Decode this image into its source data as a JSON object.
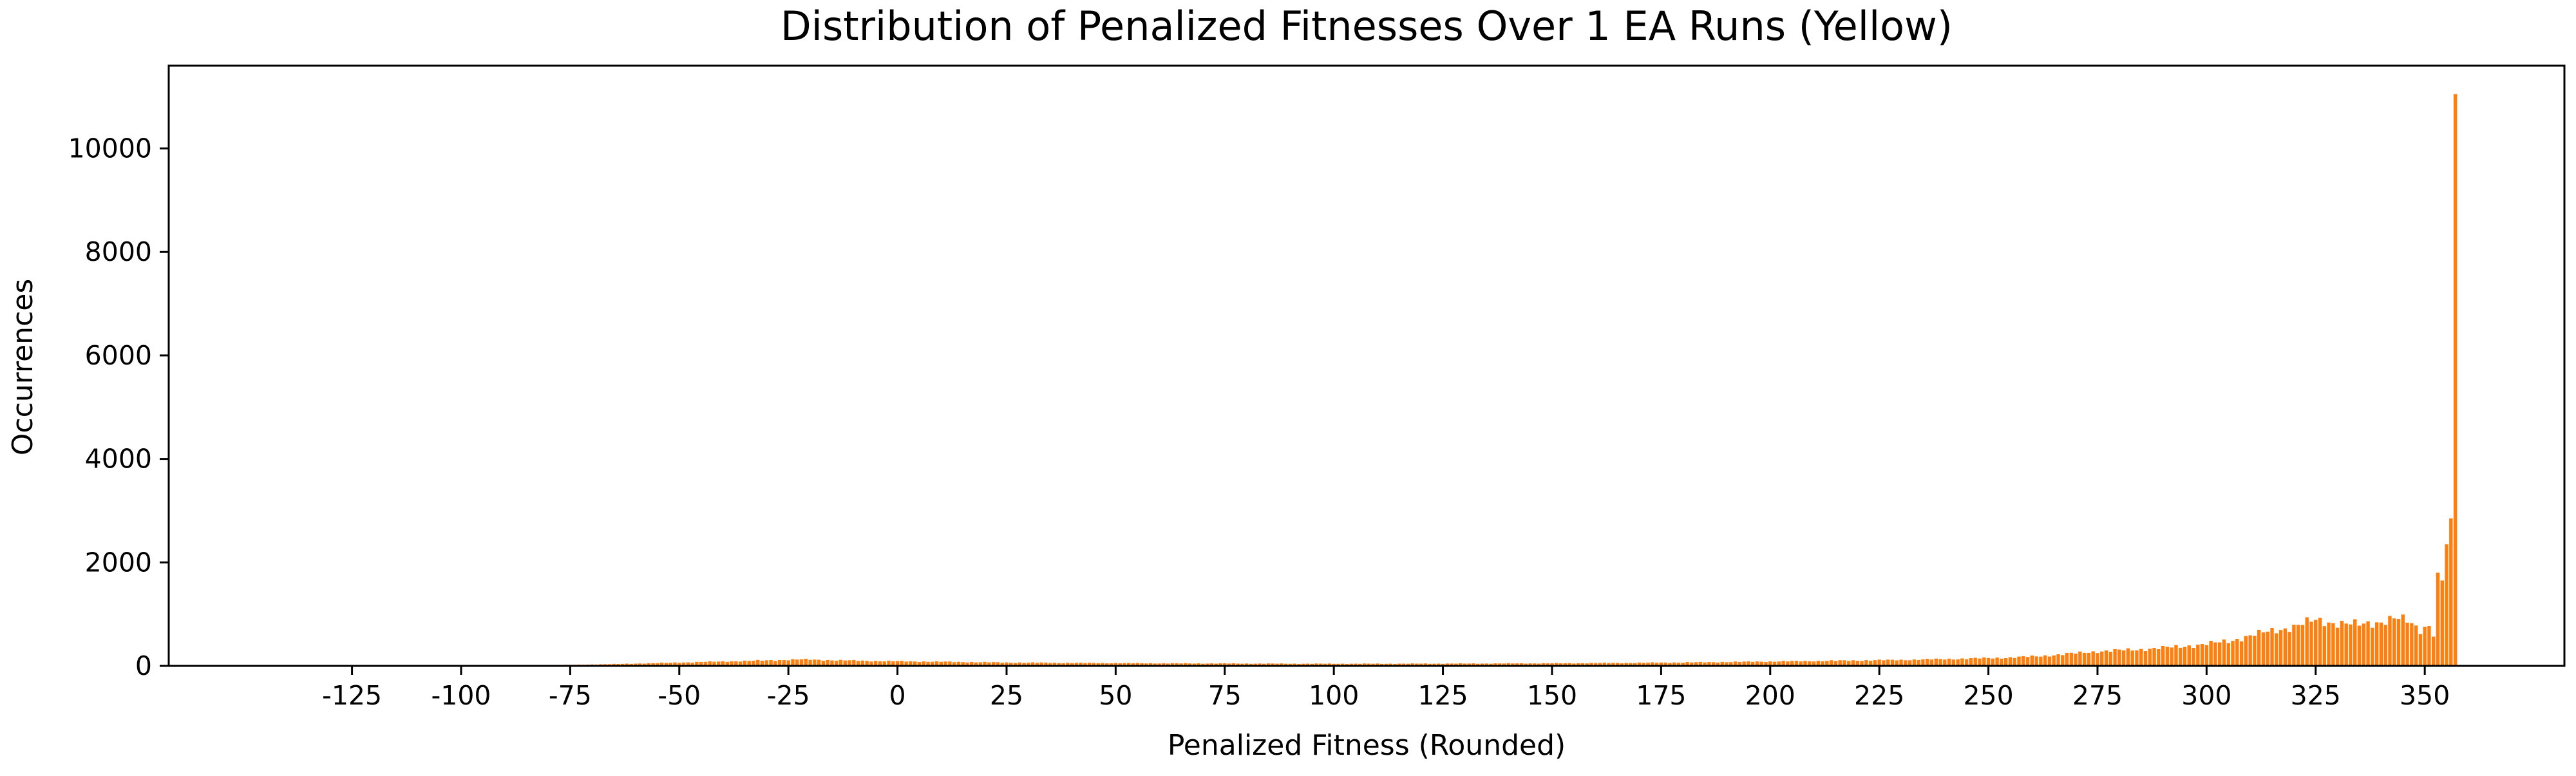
{
  "chart_data": {
    "type": "bar",
    "title": "Distribution of Penalized Fitnesses Over 1 EA Runs (Yellow)",
    "xlabel": "Penalized Fitness (Rounded)",
    "ylabel": "Occurrences",
    "xlim": [
      -167,
      382
    ],
    "ylim": [
      0,
      11600
    ],
    "x_ticks": [
      -125,
      -100,
      -75,
      -50,
      -25,
      0,
      25,
      50,
      75,
      100,
      125,
      150,
      175,
      200,
      225,
      250,
      275,
      300,
      325,
      350
    ],
    "y_ticks": [
      0,
      2000,
      4000,
      6000,
      8000,
      10000
    ],
    "bar_color": "#ff7f0e",
    "grid": false,
    "series": [
      {
        "name": "Occurrences",
        "anchors": [
          [
            -135,
            2
          ],
          [
            -110,
            4
          ],
          [
            -90,
            8
          ],
          [
            -75,
            20
          ],
          [
            -65,
            35
          ],
          [
            -55,
            55
          ],
          [
            -45,
            75
          ],
          [
            -35,
            95
          ],
          [
            -28,
            110
          ],
          [
            -22,
            125
          ],
          [
            -15,
            110
          ],
          [
            -5,
            95
          ],
          [
            5,
            85
          ],
          [
            15,
            75
          ],
          [
            25,
            65
          ],
          [
            40,
            58
          ],
          [
            60,
            50
          ],
          [
            80,
            45
          ],
          [
            95,
            42
          ],
          [
            110,
            42
          ],
          [
            130,
            45
          ],
          [
            150,
            50
          ],
          [
            170,
            60
          ],
          [
            185,
            70
          ],
          [
            200,
            85
          ],
          [
            215,
            100
          ],
          [
            230,
            115
          ],
          [
            245,
            140
          ],
          [
            255,
            160
          ],
          [
            262,
            190
          ],
          [
            268,
            230
          ],
          [
            275,
            280
          ],
          [
            285,
            320
          ],
          [
            292,
            360
          ],
          [
            300,
            420
          ],
          [
            305,
            480
          ],
          [
            310,
            580
          ],
          [
            315,
            680
          ],
          [
            320,
            760
          ],
          [
            325,
            880
          ],
          [
            330,
            830
          ],
          [
            335,
            790
          ],
          [
            340,
            860
          ],
          [
            343,
            920
          ],
          [
            346,
            860
          ],
          [
            349,
            700
          ],
          [
            351,
            800
          ],
          [
            352,
            620
          ]
        ],
        "peaks": [
          [
            353,
            1800
          ],
          [
            354,
            1650
          ],
          [
            355,
            2350
          ],
          [
            356,
            2850
          ],
          [
            357,
            11050
          ]
        ]
      }
    ]
  }
}
